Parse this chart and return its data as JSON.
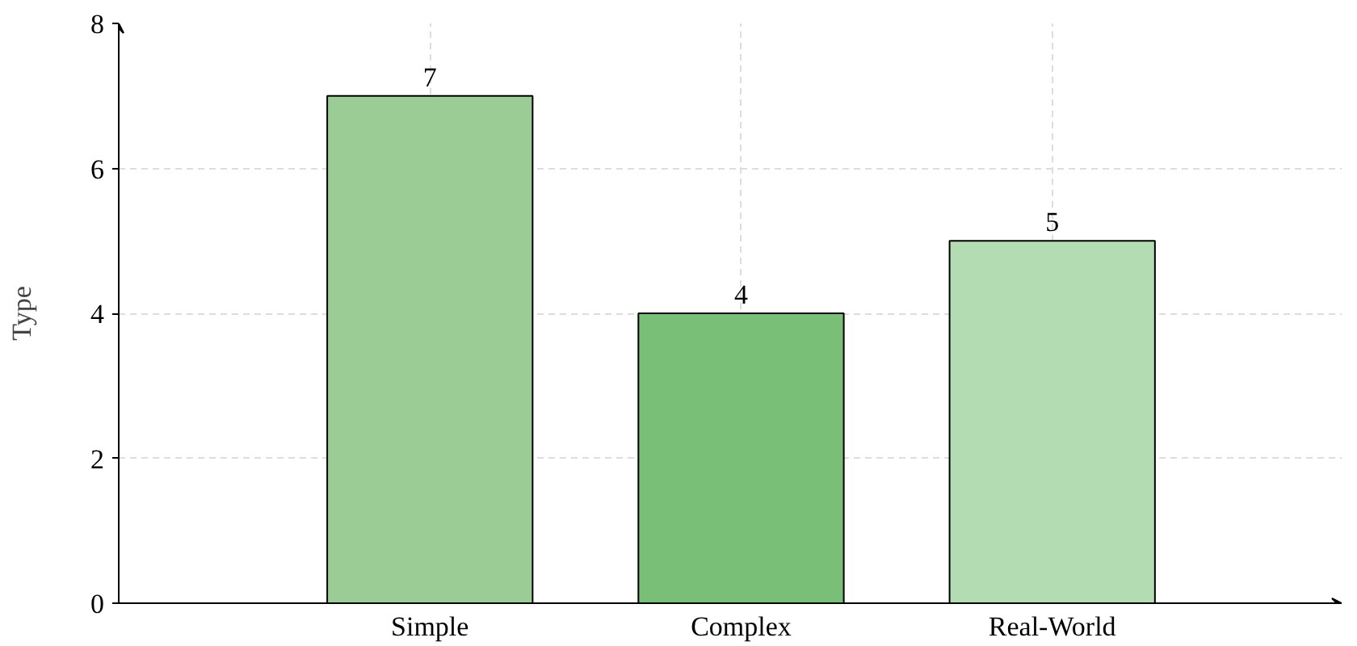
{
  "chart_data": {
    "type": "bar",
    "ylabel": "Type",
    "categories": [
      "Simple",
      "Complex",
      "Real-World"
    ],
    "values": [
      7,
      4,
      5
    ],
    "colors": [
      "#9ccc96",
      "#79bf77",
      "#b3dcb2"
    ],
    "ylim": [
      0,
      8
    ],
    "yticks": [
      0,
      2,
      4,
      6,
      8
    ],
    "grid": true,
    "data_labels": true
  }
}
